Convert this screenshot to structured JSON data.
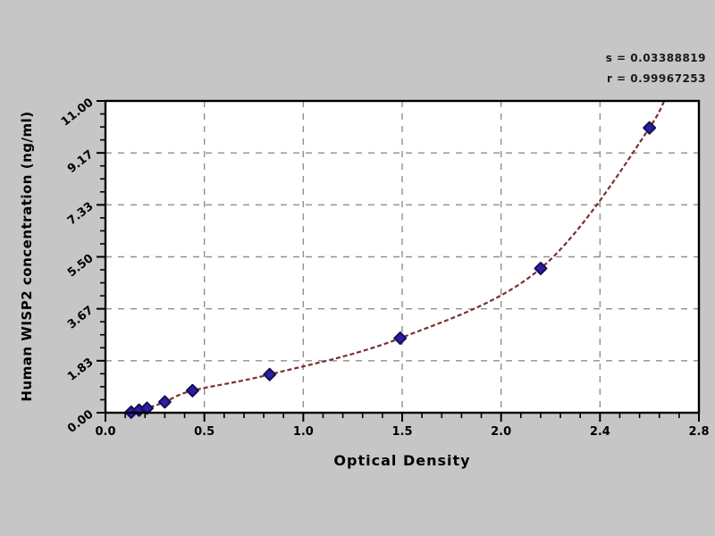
{
  "colors": {
    "background": "#c6c6c6",
    "plot_background": "#ffffff",
    "axis": "#000000",
    "grid": "#8f8f8f",
    "curve": "#7a2f2f",
    "point_fill": "#2a1f9e",
    "point_stroke": "#150e56",
    "text": "#000000"
  },
  "chart_data": {
    "type": "scatter",
    "title": "",
    "xlabel": "Optical Density",
    "ylabel": "Human WISP2 concentration (ng/ml)",
    "x_tick_labels": [
      "0.0",
      "0.5",
      "1.0",
      "1.5",
      "2.0",
      "2.4",
      "2.8"
    ],
    "y_tick_labels": [
      "0.00",
      "1.83",
      "3.67",
      "5.50",
      "7.33",
      "9.17",
      "11.00"
    ],
    "xlim": [
      0,
      3.0
    ],
    "ylim": [
      0,
      11
    ],
    "grid": "dashed",
    "legend": "none",
    "stats": {
      "s": "s = 0.03388819",
      "r": "r = 0.99967253"
    },
    "series": [
      {
        "name": "standard-points",
        "marker": "diamond",
        "points": [
          [
            0.13,
            0.02
          ],
          [
            0.17,
            0.09
          ],
          [
            0.21,
            0.16
          ],
          [
            0.3,
            0.38
          ],
          [
            0.44,
            0.78
          ],
          [
            0.83,
            1.35
          ],
          [
            1.49,
            2.63
          ],
          [
            2.2,
            5.09
          ],
          [
            2.75,
            10.05
          ]
        ]
      }
    ],
    "fit_curve": {
      "style": "dashed",
      "extends_from": [
        0.02,
        -0.3
      ],
      "extends_to": [
        2.85,
        11.8
      ]
    }
  }
}
